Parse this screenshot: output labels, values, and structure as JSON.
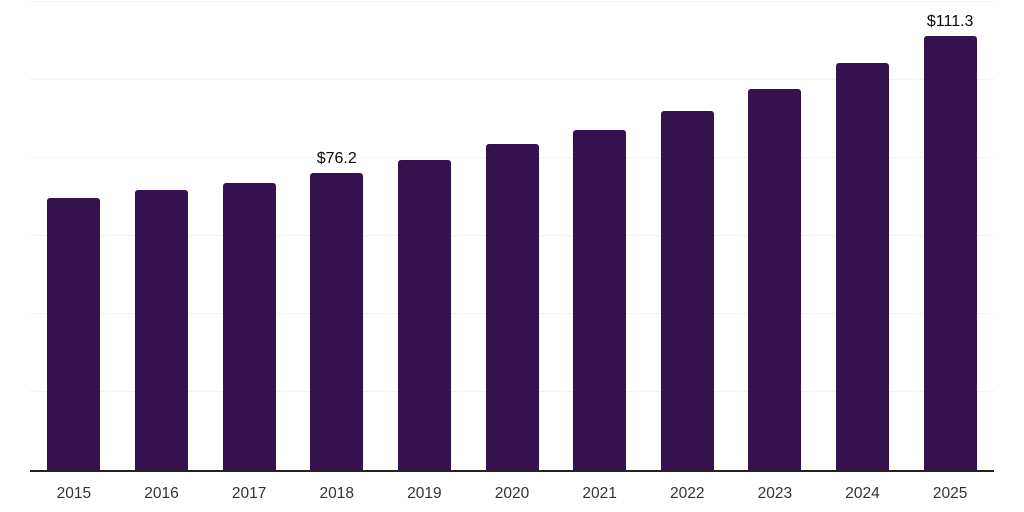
{
  "chart": {
    "background": "#ffffff",
    "bar_color": "#351150",
    "grid_color": "#f2f2f2",
    "axis_color": "#232323",
    "tick_label_color": "#333333",
    "value_label_color": "#0a0a0a"
  },
  "chart_data": {
    "type": "bar",
    "title": "",
    "xlabel": "",
    "ylabel": "",
    "categories": [
      "2015",
      "2016",
      "2017",
      "2018",
      "2019",
      "2020",
      "2021",
      "2022",
      "2023",
      "2024",
      "2025"
    ],
    "values": [
      69.8,
      71.7,
      73.7,
      76.2,
      79.5,
      83.5,
      87.3,
      92.1,
      97.7,
      104.3,
      111.3
    ],
    "data_labels": [
      {
        "category": "2018",
        "text": "$76.2"
      },
      {
        "category": "2025",
        "text": "$111.3"
      }
    ],
    "ylim": [
      0,
      120
    ],
    "grid_step": 20,
    "grid": "on",
    "legend": "none",
    "x_axis_line": "on",
    "y_axis_tick_labels": "off"
  }
}
